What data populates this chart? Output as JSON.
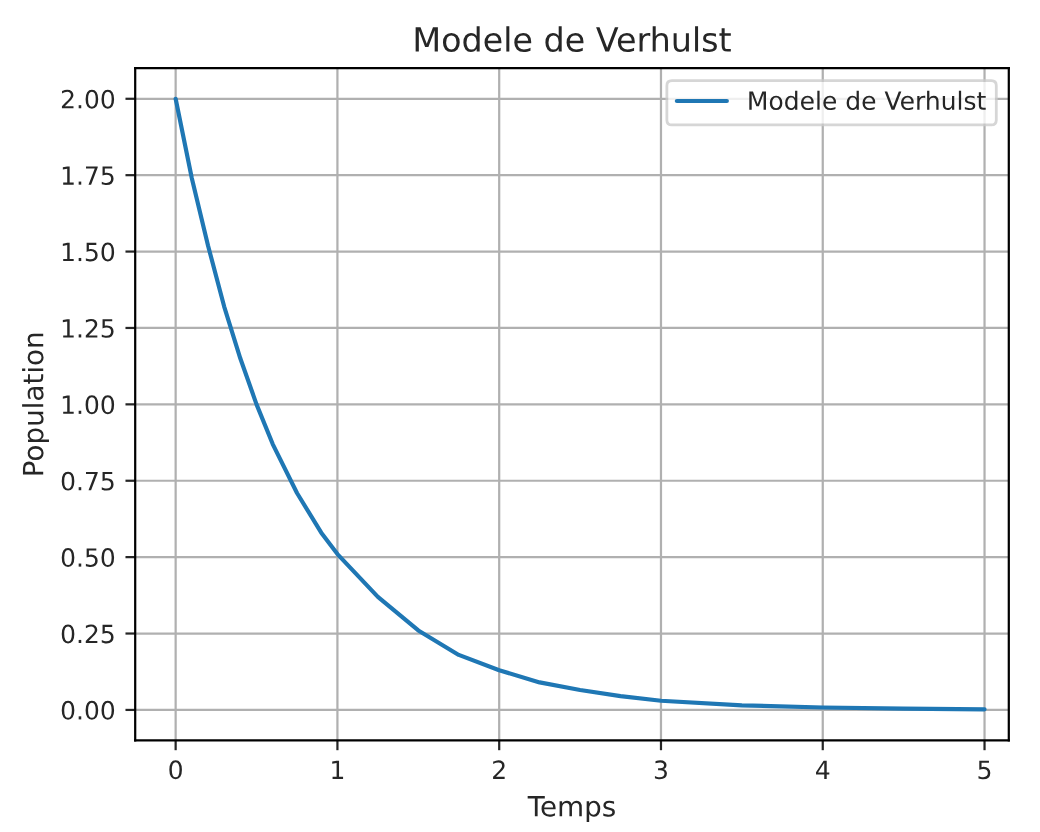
{
  "chart_data": {
    "type": "line",
    "title": "Modele de Verhulst",
    "xlabel": "Temps",
    "ylabel": "Population",
    "series": [
      {
        "name": "Modele de Verhulst",
        "color": "#1f77b4",
        "x": [
          0,
          0.1,
          0.2,
          0.3,
          0.4,
          0.5,
          0.6,
          0.75,
          0.9,
          1,
          1.25,
          1.5,
          1.75,
          2,
          2.25,
          2.5,
          2.75,
          3,
          3.5,
          4,
          4.5,
          5
        ],
        "values": [
          2.0,
          1.74,
          1.52,
          1.32,
          1.15,
          1.0,
          0.87,
          0.71,
          0.58,
          0.51,
          0.37,
          0.26,
          0.18,
          0.13,
          0.09,
          0.065,
          0.045,
          0.03,
          0.015,
          0.008,
          0.004,
          0.002
        ]
      }
    ],
    "xlim": [
      -0.25,
      5.15
    ],
    "ylim": [
      -0.1,
      2.1
    ],
    "xticks": [
      0,
      1,
      2,
      3,
      4,
      5
    ],
    "yticks": [
      {
        "value": 0,
        "label": "0.00"
      },
      {
        "value": 0.25,
        "label": "0.25"
      },
      {
        "value": 0.5,
        "label": "0.50"
      },
      {
        "value": 0.75,
        "label": "0.75"
      },
      {
        "value": 1,
        "label": "1.00"
      },
      {
        "value": 1.25,
        "label": "1.25"
      },
      {
        "value": 1.5,
        "label": "1.50"
      },
      {
        "value": 1.75,
        "label": "1.75"
      },
      {
        "value": 2,
        "label": "2.00"
      }
    ],
    "grid": true,
    "legend": "top right",
    "marker": "none",
    "line_style": "solid"
  }
}
